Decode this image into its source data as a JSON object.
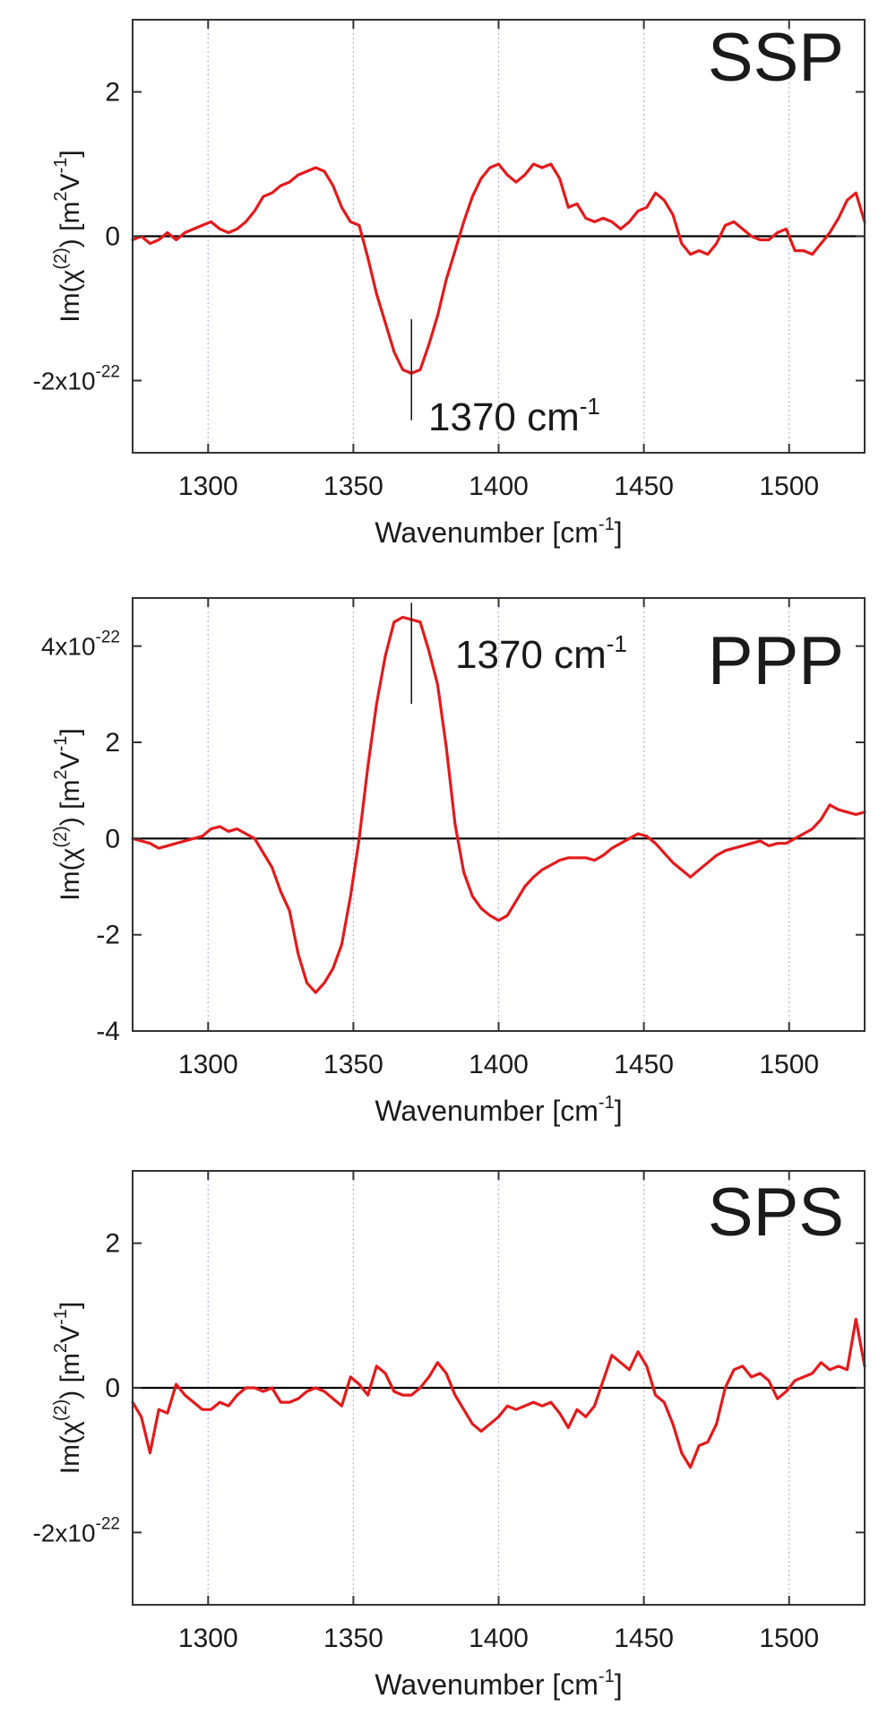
{
  "colors": {
    "series": "#e31a1c",
    "axis": "#333333",
    "grid": "#b8b8e6",
    "zero_line": "#000000"
  },
  "chart_data": [
    {
      "type": "line",
      "title": "SSP",
      "xlabel": "Wavenumber [cm-1]",
      "xlabel_main": "Wavenumber [cm",
      "xlabel_sup": "-1",
      "xlabel_end": "]",
      "ylabel": "Im(χ(2)) [m2V-1]",
      "xlim": [
        1274,
        1526
      ],
      "ylim": [
        -3.0,
        3.0
      ],
      "xticks": [
        1300,
        1350,
        1400,
        1450,
        1500
      ],
      "xtick_labels": [
        "1300",
        "1350",
        "1400",
        "1450",
        "1500"
      ],
      "yticks": [
        2,
        0,
        -2
      ],
      "ytick_labels": [
        "2",
        "0",
        "-2x10"
      ],
      "ytick_exponent": "-22",
      "grid": "vertical dotted at x ticks",
      "zero_line": true,
      "annotation": {
        "x": 1370,
        "label": "1370 cm",
        "label_sup": "-1",
        "y_from": -1.15,
        "y_to": -2.55
      },
      "series": [
        {
          "x": [
            1274,
            1277,
            1280,
            1283,
            1286,
            1289,
            1292,
            1295,
            1298,
            1301,
            1304,
            1307,
            1310,
            1313,
            1316,
            1319,
            1322,
            1325,
            1328,
            1331,
            1334,
            1337,
            1340,
            1343,
            1346,
            1349,
            1352,
            1355,
            1358,
            1361,
            1364,
            1367,
            1370,
            1373,
            1376,
            1379,
            1382,
            1385,
            1388,
            1391,
            1394,
            1397,
            1400,
            1403,
            1406,
            1409,
            1412,
            1415,
            1418,
            1421,
            1424,
            1427,
            1430,
            1433,
            1436,
            1439,
            1442,
            1445,
            1448,
            1451,
            1454,
            1457,
            1460,
            1463,
            1466,
            1469,
            1472,
            1475,
            1478,
            1481,
            1484,
            1487,
            1490,
            1493,
            1496,
            1499,
            1502,
            1505,
            1508,
            1511,
            1514,
            1517,
            1520,
            1523,
            1526
          ],
          "y": [
            -0.05,
            0.0,
            -0.1,
            -0.05,
            0.05,
            -0.05,
            0.05,
            0.1,
            0.15,
            0.2,
            0.1,
            0.05,
            0.1,
            0.2,
            0.35,
            0.55,
            0.6,
            0.7,
            0.75,
            0.85,
            0.9,
            0.95,
            0.9,
            0.7,
            0.4,
            0.2,
            0.15,
            -0.3,
            -0.8,
            -1.2,
            -1.6,
            -1.85,
            -1.9,
            -1.85,
            -1.5,
            -1.1,
            -0.6,
            -0.2,
            0.2,
            0.55,
            0.8,
            0.95,
            1.0,
            0.85,
            0.75,
            0.85,
            1.0,
            0.95,
            1.0,
            0.8,
            0.4,
            0.45,
            0.25,
            0.2,
            0.25,
            0.2,
            0.1,
            0.2,
            0.35,
            0.4,
            0.6,
            0.5,
            0.3,
            -0.1,
            -0.25,
            -0.2,
            -0.25,
            -0.1,
            0.15,
            0.2,
            0.1,
            0.0,
            -0.05,
            -0.05,
            0.05,
            0.1,
            -0.2,
            -0.2,
            -0.25,
            -0.1,
            0.05,
            0.25,
            0.5,
            0.6,
            0.2
          ]
        }
      ]
    },
    {
      "type": "line",
      "title": "PPP",
      "xlabel": "Wavenumber [cm-1]",
      "xlabel_main": "Wavenumber [cm",
      "xlabel_sup": "-1",
      "xlabel_end": "]",
      "ylabel": "Im(χ(2)) [m2V-1]",
      "xlim": [
        1274,
        1526
      ],
      "ylim": [
        -4.0,
        5.0
      ],
      "xticks": [
        1300,
        1350,
        1400,
        1450,
        1500
      ],
      "xtick_labels": [
        "1300",
        "1350",
        "1400",
        "1450",
        "1500"
      ],
      "yticks": [
        4,
        2,
        0,
        -2,
        -4
      ],
      "ytick_labels": [
        "4x10",
        "2",
        "0",
        "-2",
        "-4"
      ],
      "ytick_exponent": "-22",
      "grid": "vertical dotted at x ticks",
      "zero_line": true,
      "annotation": {
        "x": 1370,
        "label": "1370 cm",
        "label_sup": "-1",
        "y_from": 4.9,
        "y_to": 2.8
      },
      "series": [
        {
          "x": [
            1274,
            1277,
            1280,
            1283,
            1286,
            1289,
            1292,
            1295,
            1298,
            1301,
            1304,
            1307,
            1310,
            1313,
            1316,
            1319,
            1322,
            1325,
            1328,
            1331,
            1334,
            1337,
            1340,
            1343,
            1346,
            1349,
            1352,
            1355,
            1358,
            1361,
            1364,
            1367,
            1370,
            1373,
            1376,
            1379,
            1382,
            1385,
            1388,
            1391,
            1394,
            1397,
            1400,
            1403,
            1406,
            1409,
            1412,
            1415,
            1418,
            1421,
            1424,
            1427,
            1430,
            1433,
            1436,
            1439,
            1442,
            1445,
            1448,
            1451,
            1454,
            1457,
            1460,
            1463,
            1466,
            1469,
            1472,
            1475,
            1478,
            1481,
            1484,
            1487,
            1490,
            1493,
            1496,
            1499,
            1502,
            1505,
            1508,
            1511,
            1514,
            1517,
            1520,
            1523,
            1526
          ],
          "y": [
            0.0,
            -0.05,
            -0.1,
            -0.2,
            -0.15,
            -0.1,
            -0.05,
            0.0,
            0.05,
            0.2,
            0.25,
            0.15,
            0.2,
            0.1,
            0.0,
            -0.3,
            -0.6,
            -1.1,
            -1.5,
            -2.4,
            -3.0,
            -3.2,
            -3.0,
            -2.7,
            -2.2,
            -1.2,
            0.0,
            1.5,
            2.8,
            3.8,
            4.5,
            4.6,
            4.55,
            4.5,
            3.9,
            3.2,
            1.9,
            0.3,
            -0.7,
            -1.2,
            -1.45,
            -1.6,
            -1.7,
            -1.6,
            -1.3,
            -1.0,
            -0.8,
            -0.65,
            -0.55,
            -0.45,
            -0.4,
            -0.4,
            -0.4,
            -0.45,
            -0.35,
            -0.2,
            -0.1,
            0.0,
            0.1,
            0.05,
            -0.1,
            -0.3,
            -0.5,
            -0.65,
            -0.8,
            -0.65,
            -0.5,
            -0.35,
            -0.25,
            -0.2,
            -0.15,
            -0.1,
            -0.05,
            -0.15,
            -0.1,
            -0.1,
            0.0,
            0.1,
            0.2,
            0.4,
            0.7,
            0.6,
            0.55,
            0.5,
            0.55
          ]
        }
      ]
    },
    {
      "type": "line",
      "title": "SPS",
      "xlabel": "Wavenumber [cm-1]",
      "xlabel_main": "Wavenumber [cm",
      "xlabel_sup": "-1",
      "xlabel_end": "]",
      "ylabel": "Im(χ(2)) [m2V-1]",
      "xlim": [
        1274,
        1526
      ],
      "ylim": [
        -3.0,
        3.0
      ],
      "xticks": [
        1300,
        1350,
        1400,
        1450,
        1500
      ],
      "xtick_labels": [
        "1300",
        "1350",
        "1400",
        "1450",
        "1500"
      ],
      "yticks": [
        2,
        0,
        -2
      ],
      "ytick_labels": [
        "2",
        "0",
        "-2x10"
      ],
      "ytick_exponent": "-22",
      "grid": "vertical dotted at x ticks",
      "zero_line": true,
      "series": [
        {
          "x": [
            1274,
            1277,
            1280,
            1283,
            1286,
            1289,
            1292,
            1295,
            1298,
            1301,
            1304,
            1307,
            1310,
            1313,
            1316,
            1319,
            1322,
            1325,
            1328,
            1331,
            1334,
            1337,
            1340,
            1343,
            1346,
            1349,
            1352,
            1355,
            1358,
            1361,
            1364,
            1367,
            1370,
            1373,
            1376,
            1379,
            1382,
            1385,
            1388,
            1391,
            1394,
            1397,
            1400,
            1403,
            1406,
            1409,
            1412,
            1415,
            1418,
            1421,
            1424,
            1427,
            1430,
            1433,
            1436,
            1439,
            1442,
            1445,
            1448,
            1451,
            1454,
            1457,
            1460,
            1463,
            1466,
            1469,
            1472,
            1475,
            1478,
            1481,
            1484,
            1487,
            1490,
            1493,
            1496,
            1499,
            1502,
            1505,
            1508,
            1511,
            1514,
            1517,
            1520,
            1523,
            1526
          ],
          "y": [
            -0.2,
            -0.4,
            -0.9,
            -0.3,
            -0.35,
            0.05,
            -0.1,
            -0.2,
            -0.3,
            -0.3,
            -0.2,
            -0.25,
            -0.1,
            0.0,
            0.0,
            -0.05,
            0.0,
            -0.2,
            -0.2,
            -0.15,
            -0.05,
            0.0,
            -0.05,
            -0.15,
            -0.25,
            0.15,
            0.05,
            -0.1,
            0.3,
            0.2,
            -0.05,
            -0.1,
            -0.1,
            0.0,
            0.15,
            0.35,
            0.2,
            -0.1,
            -0.3,
            -0.5,
            -0.6,
            -0.5,
            -0.4,
            -0.25,
            -0.3,
            -0.25,
            -0.2,
            -0.25,
            -0.2,
            -0.35,
            -0.55,
            -0.3,
            -0.4,
            -0.25,
            0.1,
            0.45,
            0.35,
            0.25,
            0.5,
            0.3,
            -0.1,
            -0.2,
            -0.5,
            -0.9,
            -1.1,
            -0.8,
            -0.75,
            -0.5,
            0.0,
            0.25,
            0.3,
            0.15,
            0.2,
            0.1,
            -0.15,
            -0.05,
            0.1,
            0.15,
            0.2,
            0.35,
            0.25,
            0.3,
            0.25,
            0.95,
            0.3
          ]
        }
      ]
    }
  ]
}
